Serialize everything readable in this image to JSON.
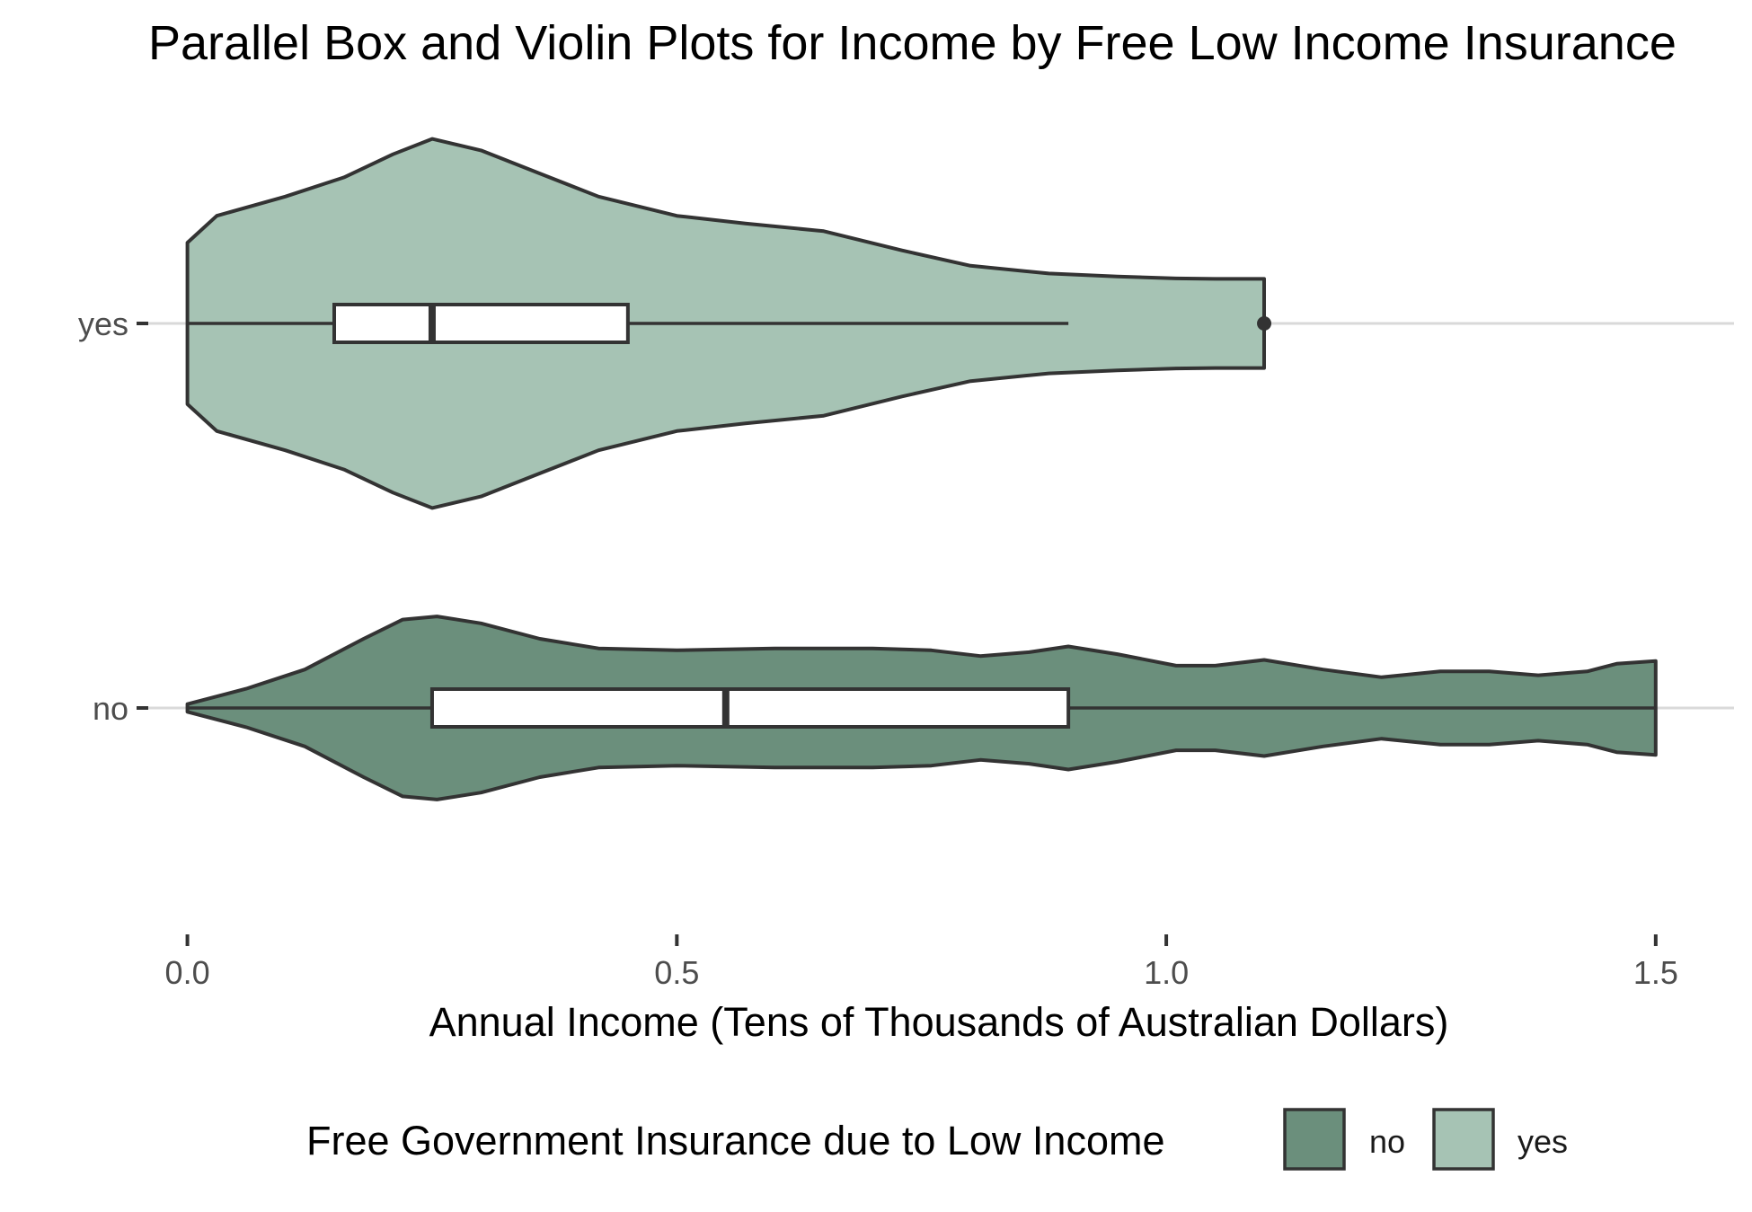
{
  "chart_data": {
    "type": "violin",
    "title": "Parallel Box and Violin Plots for Income by Free Low Income Insurance",
    "xlabel": "Annual Income (Tens of Thousands of Australian Dollars)",
    "ylabel": "",
    "xlim": [
      -0.04,
      1.58
    ],
    "x_ticks": [
      "0.0",
      "0.5",
      "1.0",
      "1.5"
    ],
    "y_categories": [
      "yes",
      "no"
    ],
    "grid": "horizontal major lines only",
    "legend": {
      "title": "Free Government Insurance due to Low Income",
      "position": "bottom",
      "entries": [
        {
          "label": "no",
          "color": "#6b8f7c"
        },
        {
          "label": "yes",
          "color": "#a6c3b4"
        }
      ]
    },
    "series": [
      {
        "name": "yes",
        "color": "#a6c3b4",
        "box": {
          "min": 0.0,
          "q1": 0.15,
          "median": 0.25,
          "q3": 0.45,
          "whisker_max": 0.9
        },
        "outliers": [
          1.1
        ],
        "density": [
          [
            0.0,
            0.29
          ],
          [
            0.03,
            0.22
          ],
          [
            0.1,
            0.17
          ],
          [
            0.16,
            0.12
          ],
          [
            0.21,
            0.06
          ],
          [
            0.25,
            0.02
          ],
          [
            0.3,
            0.05
          ],
          [
            0.36,
            0.11
          ],
          [
            0.42,
            0.17
          ],
          [
            0.5,
            0.22
          ],
          [
            0.57,
            0.24
          ],
          [
            0.65,
            0.26
          ],
          [
            0.73,
            0.31
          ],
          [
            0.8,
            0.35
          ],
          [
            0.88,
            0.37
          ],
          [
            0.95,
            0.378
          ],
          [
            1.01,
            0.383
          ],
          [
            1.05,
            0.384
          ],
          [
            1.1,
            0.384
          ]
        ]
      },
      {
        "name": "no",
        "color": "#6b8f7c",
        "box": {
          "min": 0.0,
          "q1": 0.25,
          "median": 0.55,
          "q3": 0.9,
          "whisker_max": 1.5
        },
        "outliers": [],
        "density": [
          [
            0.0,
            0.49
          ],
          [
            0.06,
            0.45
          ],
          [
            0.12,
            0.4
          ],
          [
            0.18,
            0.32
          ],
          [
            0.22,
            0.27
          ],
          [
            0.255,
            0.262
          ],
          [
            0.3,
            0.28
          ],
          [
            0.36,
            0.32
          ],
          [
            0.42,
            0.345
          ],
          [
            0.5,
            0.35
          ],
          [
            0.6,
            0.345
          ],
          [
            0.7,
            0.345
          ],
          [
            0.76,
            0.35
          ],
          [
            0.81,
            0.365
          ],
          [
            0.86,
            0.355
          ],
          [
            0.9,
            0.34
          ],
          [
            0.95,
            0.36
          ],
          [
            1.01,
            0.39
          ],
          [
            1.05,
            0.39
          ],
          [
            1.1,
            0.375
          ],
          [
            1.16,
            0.4
          ],
          [
            1.22,
            0.42
          ],
          [
            1.28,
            0.405
          ],
          [
            1.33,
            0.405
          ],
          [
            1.38,
            0.415
          ],
          [
            1.43,
            0.405
          ],
          [
            1.46,
            0.385
          ],
          [
            1.5,
            0.378
          ]
        ]
      }
    ]
  }
}
